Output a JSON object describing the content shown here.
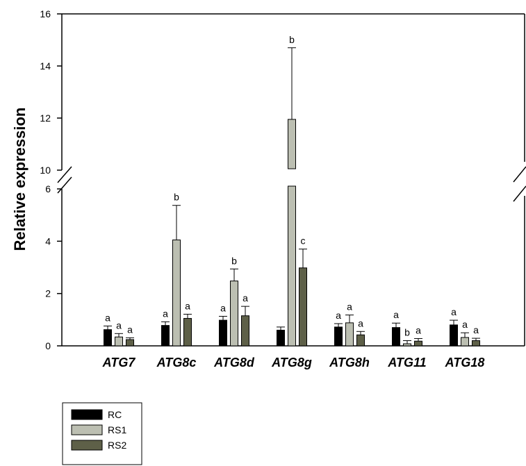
{
  "chart_data": {
    "type": "bar",
    "title": "",
    "ylabel": "Relative expression",
    "xlabel": "",
    "categories": [
      "ATG7",
      "ATG8c",
      "ATG8d",
      "ATG8g",
      "ATG8h",
      "ATG11",
      "ATG18"
    ],
    "y_axis": {
      "broken": true,
      "lower_segment": [
        0,
        6
      ],
      "upper_segment": [
        10,
        16
      ],
      "ticks": [
        0,
        2,
        4,
        6,
        10,
        12,
        14,
        16
      ]
    },
    "series": [
      {
        "name": "RC",
        "color": "#000000",
        "values": [
          0.62,
          0.78,
          0.98,
          0.6,
          0.72,
          0.7,
          0.8
        ],
        "errors": [
          0.14,
          0.14,
          0.15,
          0.12,
          0.13,
          0.17,
          0.18
        ],
        "letters": [
          "a",
          "a",
          "a",
          "",
          "a",
          "a",
          "a"
        ]
      },
      {
        "name": "RS1",
        "color": "#bcbfb2",
        "values": [
          0.34,
          4.05,
          2.48,
          11.95,
          0.88,
          0.08,
          0.32
        ],
        "errors": [
          0.13,
          1.32,
          0.46,
          2.75,
          0.3,
          0.12,
          0.18
        ],
        "letters": [
          "a",
          "b",
          "b",
          "b",
          "a",
          "b",
          "a"
        ]
      },
      {
        "name": "RS2",
        "color": "#5e6048",
        "values": [
          0.24,
          1.05,
          1.15,
          2.98,
          0.42,
          0.18,
          0.2
        ],
        "errors": [
          0.07,
          0.16,
          0.36,
          0.72,
          0.13,
          0.1,
          0.09
        ],
        "letters": [
          "a",
          "a",
          "a",
          "c",
          "a",
          "a",
          "a"
        ]
      }
    ],
    "legend": {
      "position": "bottom-left",
      "entries": [
        "RC",
        "RS1",
        "RS2"
      ]
    }
  }
}
